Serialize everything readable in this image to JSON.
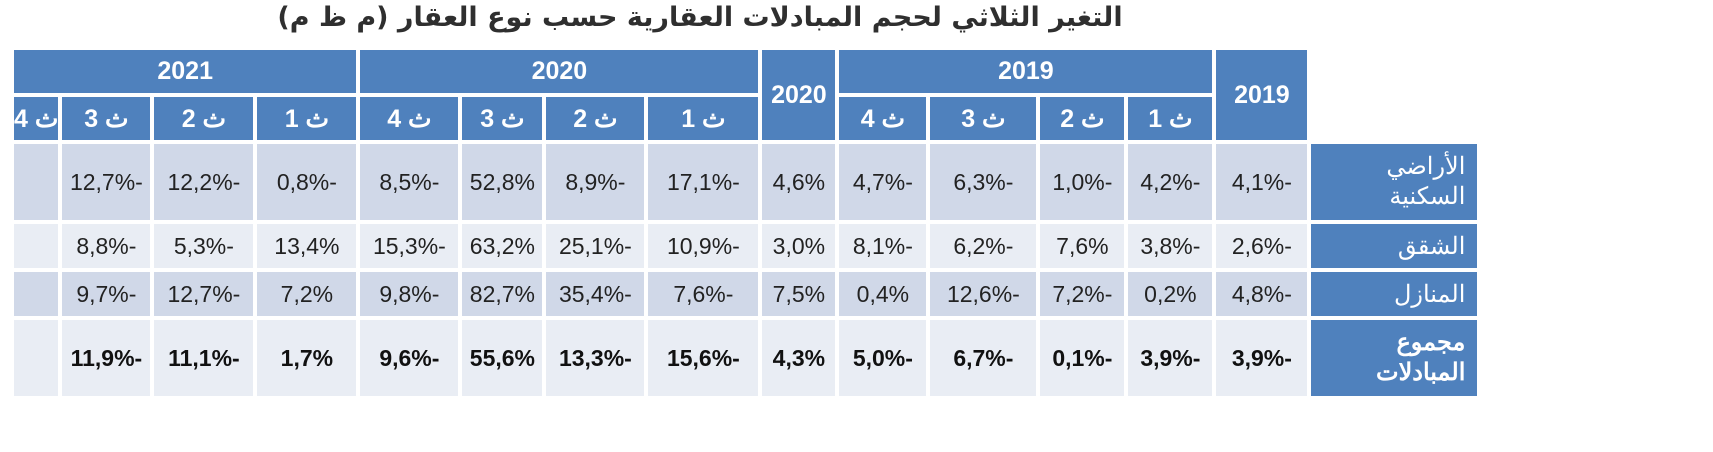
{
  "title": "التغير الثلاثي لحجم المبادلات العقارية حسب نوع العقار (م ظ م)",
  "table": {
    "header_year_2019": "2019",
    "header_year_2020": "2020",
    "header_group_2019": "2019",
    "header_group_2020": "2020",
    "header_group_2021": "2021",
    "quarters_2019": [
      "ث 1",
      "ث 2",
      "ث 3",
      "ث 4"
    ],
    "quarters_2020": [
      "ث 1",
      "ث 2",
      "ث 3",
      "ث 4"
    ],
    "quarters_2021": [
      "ث 1",
      "ث 2",
      "ث 3",
      "ث 4"
    ],
    "rows": [
      {
        "label_line1": "الأراضي",
        "label_line2": "السكنية",
        "y2019": "-4,1%",
        "q2019": [
          "-4,2%",
          "-1,0%",
          "-6,3%",
          "-4,7%"
        ],
        "y2020": "4,6%",
        "q2020": [
          "-17,1%",
          "-8,9%",
          "52,8%",
          "-8,5%"
        ],
        "q2021": [
          "-0,8%",
          "-12,2%",
          "-12,7%",
          ""
        ]
      },
      {
        "label_line1": "الشقق",
        "y2019": "-2,6%",
        "q2019": [
          "-3,8%",
          "7,6%",
          "-6,2%",
          "-8,1%"
        ],
        "y2020": "3,0%",
        "q2020": [
          "-10,9%",
          "-25,1%",
          "63,2%",
          "-15,3%"
        ],
        "q2021": [
          "13,4%",
          "-5,3%",
          "-8,8%",
          ""
        ]
      },
      {
        "label_line1": "المنازل",
        "y2019": "-4,8%",
        "q2019": [
          "0,2%",
          "-7,2%",
          "-12,6%",
          "0,4%"
        ],
        "y2020": "7,5%",
        "q2020": [
          "-7,6%",
          "-35,4%",
          "82,7%",
          "-9,8%"
        ],
        "q2021": [
          "7,2%",
          "-12,7%",
          "-9,7%",
          ""
        ]
      },
      {
        "label_line1": "مجموع",
        "label_line2": "المبادلات",
        "y2019": "-3,9%",
        "q2019": [
          "-3,9%",
          "-0,1%",
          "-6,7%",
          "-5,0%"
        ],
        "y2020": "4,3%",
        "q2020": [
          "-15,6%",
          "-13,3%",
          "55,6%",
          "-9,6%"
        ],
        "q2021": [
          "1,7%",
          "-11,1%",
          "-11,9%",
          ""
        ]
      }
    ]
  },
  "colors": {
    "header_blue": "#4f81bd",
    "band_dark": "#d0d8e8",
    "band_light": "#e9edf4"
  }
}
